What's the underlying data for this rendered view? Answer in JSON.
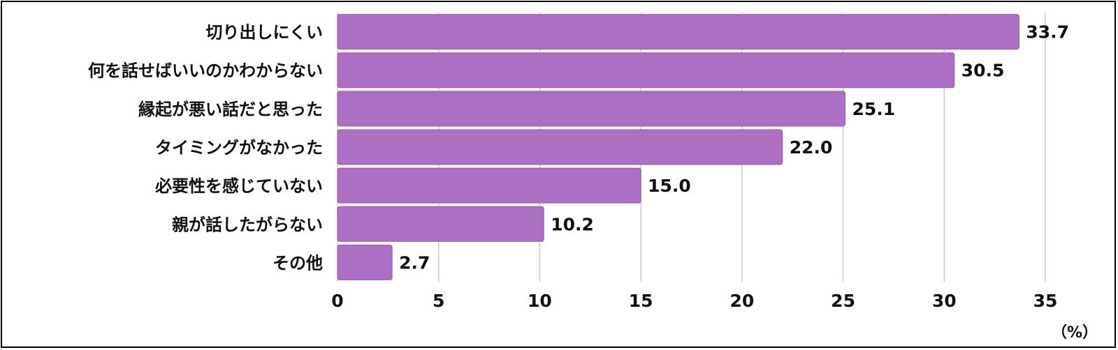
{
  "chart_data": {
    "type": "bar",
    "orientation": "horizontal",
    "categories": [
      "切り出しにくい",
      "何を話せばいいのかわからない",
      "縁起が悪い話だと思った",
      "タイミングがなかった",
      "必要性を感じていない",
      "親が話したがらない",
      "その他"
    ],
    "values": [
      33.7,
      30.5,
      25.1,
      22.0,
      15.0,
      10.2,
      2.7
    ],
    "value_labels": [
      "33.7",
      "30.5",
      "25.1",
      "22.0",
      "15.0",
      "10.2",
      "2.7"
    ],
    "xlim": [
      0,
      35
    ],
    "xticks": [
      0,
      5,
      10,
      15,
      20,
      25,
      30,
      35
    ],
    "xtick_labels": [
      "0",
      "5",
      "10",
      "15",
      "20",
      "25",
      "30",
      "35"
    ],
    "unit_label": "（%）",
    "bar_color": "#ad6fc3",
    "grid": true
  }
}
